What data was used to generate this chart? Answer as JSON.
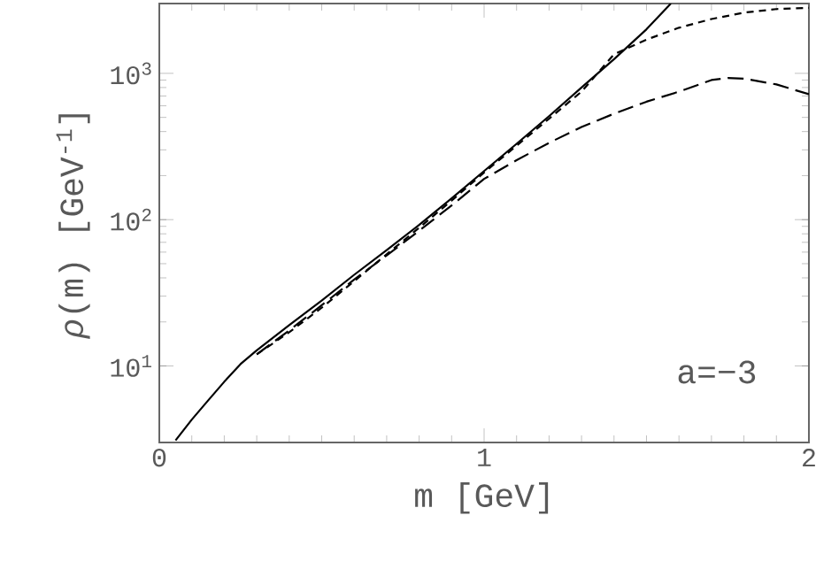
{
  "chart_data": {
    "type": "line",
    "xlabel": "m [GeV]",
    "ylabel": "*ρ*(m) [GeV$^{-1}$]",
    "log": "y",
    "xlim": [
      0,
      2
    ],
    "ylim": [
      3,
      3000
    ],
    "xticks": [
      0,
      1,
      2
    ],
    "yticks": [
      {
        "value": 10,
        "label": "10$^{1}$"
      },
      {
        "value": 100,
        "label": "10$^{2}$"
      },
      {
        "value": 1000,
        "label": "10$^{3}$"
      }
    ],
    "grid": false,
    "marker": "none",
    "annotations": [
      "a=−3"
    ],
    "series": [
      {
        "color": "#000000",
        "line_style": "solid",
        "x": [
          0.05,
          0.1,
          0.15,
          0.2,
          0.25,
          0.3,
          0.4,
          0.5,
          0.6,
          0.7,
          0.8,
          0.9,
          1.0,
          1.1,
          1.2,
          1.3,
          1.4,
          1.5,
          1.575
        ],
        "values": [
          3.1,
          4.3,
          5.8,
          7.8,
          10.3,
          12.8,
          19,
          28,
          42,
          62,
          92,
          140,
          215,
          330,
          510,
          800,
          1250,
          2000,
          3000
        ]
      },
      {
        "color": "#000000",
        "line_style": "dashed",
        "x": [
          0.3,
          0.4,
          0.5,
          0.6,
          0.7,
          0.8,
          0.9,
          1.0,
          1.1,
          1.2,
          1.3,
          1.4,
          1.5,
          1.6,
          1.7,
          1.8,
          1.9,
          2.0
        ],
        "values": [
          12,
          17,
          25,
          38,
          58,
          88,
          135,
          210,
          320,
          490,
          750,
          1350,
          1700,
          2050,
          2350,
          2600,
          2750,
          2800
        ]
      },
      {
        "color": "#000000",
        "line_style": "long dashed",
        "x": [
          0.3,
          0.4,
          0.5,
          0.6,
          0.7,
          0.8,
          0.9,
          1.0,
          1.1,
          1.2,
          1.3,
          1.4,
          1.5,
          1.6,
          1.7,
          1.75,
          1.8,
          1.9,
          2.0
        ],
        "values": [
          12,
          17.5,
          26,
          39,
          57,
          84,
          125,
          190,
          255,
          335,
          430,
          530,
          640,
          750,
          900,
          930,
          920,
          840,
          720
        ]
      }
    ]
  }
}
